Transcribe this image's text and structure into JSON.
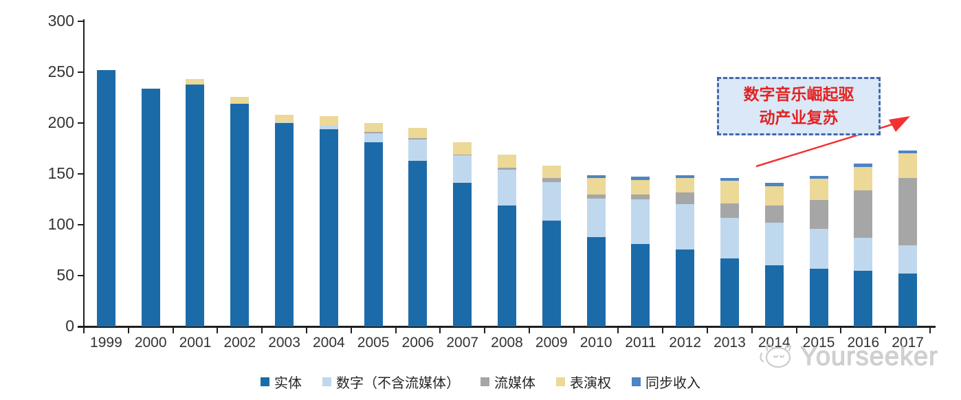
{
  "chart_data": {
    "type": "bar",
    "stacked": true,
    "title": "",
    "xlabel": "",
    "ylabel": "",
    "ylim": [
      0,
      300
    ],
    "yticks": [
      0,
      50,
      100,
      150,
      200,
      250,
      300
    ],
    "grid": false,
    "legend_position": "bottom",
    "categories": [
      "1999",
      "2000",
      "2001",
      "2002",
      "2003",
      "2004",
      "2005",
      "2006",
      "2007",
      "2008",
      "2009",
      "2010",
      "2011",
      "2012",
      "2013",
      "2014",
      "2015",
      "2016",
      "2017"
    ],
    "series": [
      {
        "key": "physical",
        "name": "实体",
        "color": "#1c6ba9",
        "values": [
          252,
          234,
          238,
          219,
          200,
          194,
          181,
          163,
          141,
          119,
          104,
          88,
          81,
          76,
          67,
          60,
          57,
          55,
          52
        ]
      },
      {
        "key": "digital-ex-streaming",
        "name": "数字（不含流媒体）",
        "color": "#bfd8ee",
        "values": [
          0,
          0,
          0,
          0,
          1,
          3,
          9,
          21,
          27,
          35,
          38,
          38,
          44,
          44,
          40,
          42,
          39,
          32,
          28
        ]
      },
      {
        "key": "streaming",
        "name": "流媒体",
        "color": "#a6a6a6",
        "values": [
          0,
          0,
          0,
          0,
          0,
          0,
          1,
          1,
          1,
          2,
          4,
          4,
          5,
          12,
          14,
          17,
          28,
          47,
          66
        ]
      },
      {
        "key": "performance-rights",
        "name": "表演权",
        "color": "#ecd897",
        "values": [
          0,
          0,
          5,
          7,
          7,
          10,
          9,
          10,
          12,
          13,
          12,
          16,
          14,
          14,
          22,
          19,
          21,
          23,
          24
        ]
      },
      {
        "key": "sync-revenue",
        "name": "同步收入",
        "color": "#4c84c4",
        "values": [
          0,
          0,
          0,
          0,
          0,
          0,
          0,
          0,
          0,
          0,
          0,
          3,
          3,
          3,
          3,
          3,
          3,
          3,
          3
        ]
      }
    ],
    "totals": [
      252,
      234,
      243,
      226,
      208,
      207,
      200,
      195,
      181,
      169,
      158,
      149,
      147,
      149,
      146,
      141,
      148,
      160,
      173
    ]
  },
  "annotation": {
    "line1": "数字音乐崛起驱",
    "line2": "动产业复苏",
    "box_fill": "#dbe8f7",
    "border_color": "#4169ad",
    "text_color": "#e32222",
    "arrow_color": "#f53030"
  },
  "watermark": {
    "text": "Yourseeker",
    "logo": "cat-logo",
    "color": "#bdbdbd"
  }
}
